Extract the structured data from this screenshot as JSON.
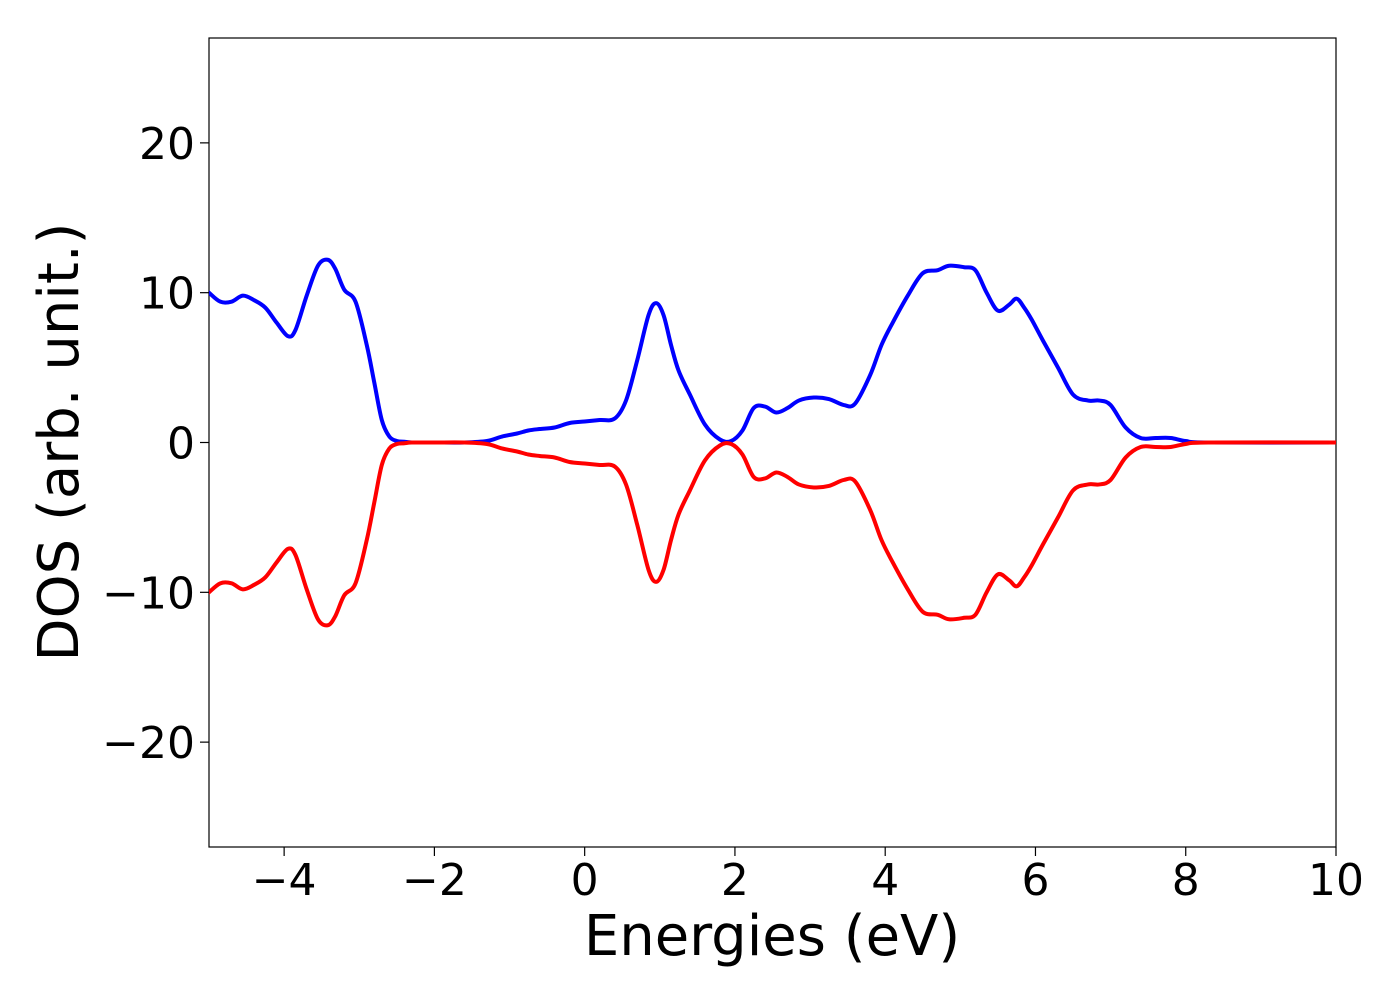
{
  "chart_data": {
    "type": "line",
    "title": "",
    "xlabel": "Energies (eV)",
    "ylabel": "DOS (arb. unit.)",
    "xlim": [
      -5,
      10
    ],
    "ylim": [
      -27,
      27
    ],
    "xticks": [
      -4,
      -2,
      0,
      2,
      4,
      6,
      8,
      10
    ],
    "xtick_labels": [
      "−4",
      "−2",
      "0",
      "2",
      "4",
      "6",
      "8",
      "10"
    ],
    "yticks": [
      -20,
      -10,
      0,
      10,
      20
    ],
    "ytick_labels": [
      "−20",
      "−10",
      "0",
      "10",
      "20"
    ],
    "grid": false,
    "legend": "none",
    "series": [
      {
        "color": "#0000ff",
        "x": [
          -5.0,
          -4.85,
          -4.7,
          -4.55,
          -4.4,
          -4.25,
          -4.1,
          -3.95,
          -3.85,
          -3.7,
          -3.55,
          -3.42,
          -3.32,
          -3.2,
          -3.05,
          -2.9,
          -2.8,
          -2.7,
          -2.6,
          -2.5,
          -2.4,
          -2.3,
          -2.0,
          -1.6,
          -1.3,
          -1.1,
          -0.9,
          -0.75,
          -0.6,
          -0.4,
          -0.2,
          0.0,
          0.2,
          0.4,
          0.55,
          0.7,
          0.85,
          0.95,
          1.05,
          1.15,
          1.25,
          1.4,
          1.6,
          1.8,
          1.95,
          2.1,
          2.25,
          2.4,
          2.55,
          2.7,
          2.85,
          3.05,
          3.25,
          3.45,
          3.6,
          3.8,
          3.95,
          4.1,
          4.3,
          4.5,
          4.7,
          4.85,
          5.05,
          5.2,
          5.35,
          5.5,
          5.65,
          5.75,
          5.85,
          5.95,
          6.1,
          6.3,
          6.5,
          6.7,
          6.85,
          7.0,
          7.2,
          7.4,
          7.6,
          7.8,
          8.0,
          8.3,
          10.0
        ],
        "y": [
          10.0,
          9.4,
          9.4,
          9.8,
          9.5,
          9.0,
          8.0,
          7.1,
          7.5,
          9.8,
          11.8,
          12.2,
          11.6,
          10.2,
          9.4,
          6.5,
          4.0,
          1.5,
          0.4,
          0.1,
          0.05,
          0.0,
          0.0,
          0.0,
          0.1,
          0.4,
          0.6,
          0.8,
          0.9,
          1.0,
          1.3,
          1.4,
          1.5,
          1.6,
          2.8,
          5.5,
          8.5,
          9.3,
          8.5,
          6.5,
          4.8,
          3.2,
          1.2,
          0.2,
          0.1,
          0.8,
          2.3,
          2.4,
          2.0,
          2.3,
          2.8,
          3.0,
          2.9,
          2.5,
          2.6,
          4.5,
          6.5,
          8.0,
          9.8,
          11.3,
          11.5,
          11.8,
          11.7,
          11.5,
          10.0,
          8.8,
          9.2,
          9.6,
          9.0,
          8.2,
          6.8,
          5.0,
          3.2,
          2.8,
          2.8,
          2.5,
          1.0,
          0.3,
          0.3,
          0.3,
          0.1,
          0.0,
          0.0
        ]
      },
      {
        "color": "#ff0000",
        "x": [
          -5.0,
          -4.85,
          -4.7,
          -4.55,
          -4.4,
          -4.25,
          -4.1,
          -3.95,
          -3.85,
          -3.7,
          -3.55,
          -3.42,
          -3.32,
          -3.2,
          -3.05,
          -2.9,
          -2.8,
          -2.7,
          -2.6,
          -2.5,
          -2.4,
          -2.3,
          -2.0,
          -1.6,
          -1.3,
          -1.1,
          -0.9,
          -0.75,
          -0.6,
          -0.4,
          -0.2,
          0.0,
          0.2,
          0.4,
          0.55,
          0.7,
          0.85,
          0.95,
          1.05,
          1.15,
          1.25,
          1.4,
          1.6,
          1.8,
          1.95,
          2.1,
          2.25,
          2.4,
          2.55,
          2.7,
          2.85,
          3.05,
          3.25,
          3.45,
          3.6,
          3.8,
          3.95,
          4.1,
          4.3,
          4.5,
          4.7,
          4.85,
          5.05,
          5.2,
          5.35,
          5.5,
          5.65,
          5.75,
          5.85,
          5.95,
          6.1,
          6.3,
          6.5,
          6.7,
          6.85,
          7.0,
          7.2,
          7.4,
          7.6,
          7.8,
          8.0,
          8.3,
          10.0
        ],
        "y": [
          -10.0,
          -9.4,
          -9.4,
          -9.8,
          -9.5,
          -9.0,
          -8.0,
          -7.1,
          -7.5,
          -9.8,
          -11.8,
          -12.2,
          -11.6,
          -10.2,
          -9.4,
          -6.5,
          -4.0,
          -1.5,
          -0.4,
          -0.1,
          -0.05,
          0.0,
          0.0,
          0.0,
          -0.1,
          -0.4,
          -0.6,
          -0.8,
          -0.9,
          -1.0,
          -1.3,
          -1.4,
          -1.5,
          -1.6,
          -2.8,
          -5.5,
          -8.5,
          -9.3,
          -8.5,
          -6.5,
          -4.8,
          -3.2,
          -1.2,
          -0.2,
          -0.1,
          -0.8,
          -2.3,
          -2.4,
          -2.0,
          -2.3,
          -2.8,
          -3.0,
          -2.9,
          -2.5,
          -2.6,
          -4.5,
          -6.5,
          -8.0,
          -9.8,
          -11.3,
          -11.5,
          -11.8,
          -11.7,
          -11.5,
          -10.0,
          -8.8,
          -9.2,
          -9.6,
          -9.0,
          -8.2,
          -6.8,
          -5.0,
          -3.2,
          -2.8,
          -2.8,
          -2.5,
          -1.0,
          -0.3,
          -0.3,
          -0.3,
          -0.1,
          0.0,
          0.0
        ]
      }
    ]
  }
}
